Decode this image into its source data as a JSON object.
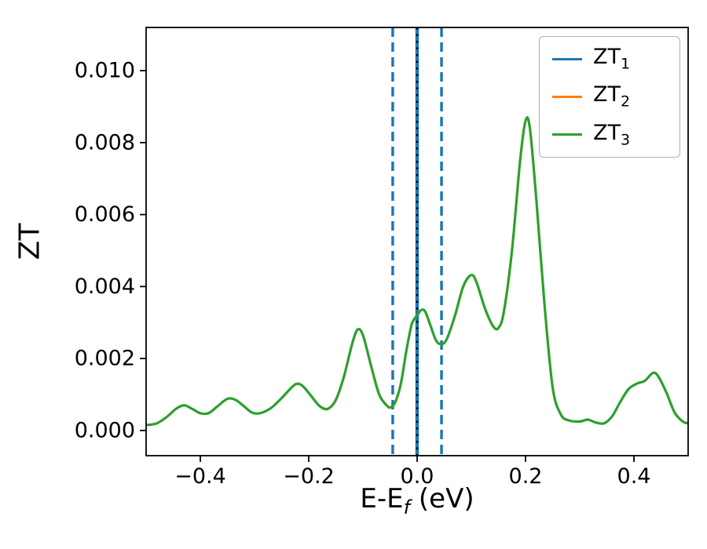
{
  "chart_data": {
    "type": "line",
    "title": "",
    "ylabel": "ZT",
    "xlabel": {
      "main": "E-E",
      "sub": "f",
      "rest": " (eV)"
    },
    "xlim": [
      -0.5,
      0.5
    ],
    "ylim": [
      -0.0007,
      0.0112
    ],
    "grid": false,
    "xticks": [
      {
        "v": -0.4,
        "label": "−0.4"
      },
      {
        "v": -0.2,
        "label": "−0.2"
      },
      {
        "v": 0.0,
        "label": "0.0"
      },
      {
        "v": 0.2,
        "label": "0.2"
      },
      {
        "v": 0.4,
        "label": "0.4"
      }
    ],
    "yticks": [
      {
        "v": 0.0,
        "label": "0.000"
      },
      {
        "v": 0.002,
        "label": "0.002"
      },
      {
        "v": 0.004,
        "label": "0.004"
      },
      {
        "v": 0.006,
        "label": "0.006"
      },
      {
        "v": 0.008,
        "label": "0.008"
      },
      {
        "v": 0.01,
        "label": "0.010"
      }
    ],
    "vlines": [
      {
        "x": -0.045,
        "color": "#1f77b4",
        "style": "dashed",
        "width": 3.5
      },
      {
        "x": 0.0,
        "color": "#1f77b4",
        "style": "solid",
        "width": 4.5
      },
      {
        "x": 0.0,
        "color": "#000000",
        "style": "dotted",
        "width": 2.5
      },
      {
        "x": 0.045,
        "color": "#1f77b4",
        "style": "dashed",
        "width": 3.5
      }
    ],
    "legend": {
      "position": "upper right",
      "items": [
        {
          "base": "ZT",
          "sub": "1",
          "color": "#1f77b4"
        },
        {
          "base": "ZT",
          "sub": "2",
          "color": "#ff7f0e"
        },
        {
          "base": "ZT",
          "sub": "3",
          "color": "#2ca02c"
        }
      ]
    },
    "series": [
      {
        "name": "ZT1",
        "color": "#1f77b4",
        "visible": false
      },
      {
        "name": "ZT2",
        "color": "#ff7f0e",
        "visible": false
      },
      {
        "name": "ZT3",
        "color": "#2ca02c",
        "visible": true,
        "x": [
          -0.5,
          -0.48,
          -0.46,
          -0.445,
          -0.43,
          -0.415,
          -0.4,
          -0.385,
          -0.37,
          -0.35,
          -0.335,
          -0.32,
          -0.305,
          -0.29,
          -0.27,
          -0.25,
          -0.23,
          -0.22,
          -0.21,
          -0.195,
          -0.18,
          -0.165,
          -0.15,
          -0.135,
          -0.12,
          -0.11,
          -0.1,
          -0.085,
          -0.07,
          -0.055,
          -0.048,
          -0.04,
          -0.03,
          -0.02,
          -0.01,
          0.0,
          0.008,
          0.015,
          0.025,
          0.035,
          0.045,
          0.055,
          0.07,
          0.085,
          0.1,
          0.11,
          0.125,
          0.14,
          0.15,
          0.16,
          0.175,
          0.19,
          0.2,
          0.208,
          0.22,
          0.235,
          0.25,
          0.265,
          0.28,
          0.3,
          0.315,
          0.33,
          0.345,
          0.36,
          0.375,
          0.39,
          0.405,
          0.42,
          0.435,
          0.445,
          0.46,
          0.475,
          0.49,
          0.5
        ],
        "y": [
          0.00015,
          0.0002,
          0.0004,
          0.0006,
          0.0007,
          0.0006,
          0.00048,
          0.00048,
          0.00065,
          0.00088,
          0.00085,
          0.00068,
          0.0005,
          0.00048,
          0.00062,
          0.0009,
          0.00122,
          0.0013,
          0.00122,
          0.00095,
          0.00068,
          0.0006,
          0.00085,
          0.0015,
          0.0024,
          0.0028,
          0.00265,
          0.0018,
          0.001,
          0.00068,
          0.00065,
          0.0008,
          0.0013,
          0.0022,
          0.00295,
          0.0032,
          0.00335,
          0.0033,
          0.0029,
          0.0025,
          0.0024,
          0.00255,
          0.0032,
          0.004,
          0.00432,
          0.0041,
          0.0034,
          0.0029,
          0.00285,
          0.0033,
          0.005,
          0.0075,
          0.0086,
          0.0084,
          0.0064,
          0.0035,
          0.0012,
          0.00045,
          0.00028,
          0.00025,
          0.0003,
          0.00022,
          0.0002,
          0.0004,
          0.0008,
          0.00115,
          0.0013,
          0.00138,
          0.0016,
          0.0015,
          0.00105,
          0.0005,
          0.00025,
          0.0002
        ]
      }
    ]
  }
}
